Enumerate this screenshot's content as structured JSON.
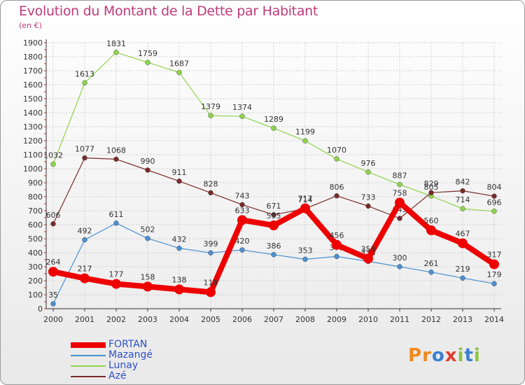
{
  "title": "Evolution du Montant de la Dette par Habitant",
  "subtitle": "(en €)",
  "logo": {
    "letters": [
      "P",
      "r",
      "o",
      "x",
      "i",
      "t",
      "i"
    ],
    "colors": [
      "#f08a1c",
      "#f08a1c",
      "#3a7fd0",
      "#e23b2f",
      "#8cc63f",
      "#3a7fd0",
      "#8cc63f"
    ]
  },
  "chart_data": {
    "type": "line",
    "x": [
      "2000",
      "2001",
      "2002",
      "2003",
      "2004",
      "2005",
      "2006",
      "2007",
      "2008",
      "2009",
      "2010",
      "2011",
      "2012",
      "2013",
      "2014"
    ],
    "ylim": [
      0,
      1900
    ],
    "yticks": [
      0,
      100,
      200,
      300,
      400,
      500,
      600,
      700,
      800,
      900,
      1000,
      1100,
      1200,
      1300,
      1400,
      1500,
      1600,
      1700,
      1800,
      1900
    ],
    "grid": true,
    "legend_position": "bottom-left",
    "series": [
      {
        "name": "Lunay",
        "color": "#8ed44a",
        "width": 1.2,
        "values": [
          1032,
          1613,
          1831,
          1759,
          1687,
          1379,
          1374,
          1289,
          1199,
          1070,
          976,
          887,
          805,
          714,
          696
        ],
        "labels": [
          "1032",
          "1613",
          "1831",
          "1759",
          "1687",
          "1379",
          "1374",
          "1289",
          "1199",
          "1070",
          "976",
          "887",
          "805",
          "714",
          "696"
        ]
      },
      {
        "name": "Azé",
        "color": "#7a2a2a",
        "width": 1.2,
        "values": [
          606,
          1077,
          1068,
          990,
          911,
          828,
          743,
          671,
          714,
          806,
          733,
          645,
          829,
          842,
          804
        ],
        "labels": [
          "606",
          "1077",
          "1068",
          "990",
          "911",
          "828",
          "743",
          "671",
          "714",
          "806",
          "733",
          "645",
          "829",
          "842",
          "804"
        ]
      },
      {
        "name": "Mazangé",
        "color": "#4a90d0",
        "width": 1.2,
        "values": [
          35,
          492,
          611,
          502,
          432,
          399,
          420,
          386,
          353,
          373,
          338,
          300,
          261,
          219,
          179
        ],
        "labels": [
          "35",
          "492",
          "611",
          "502",
          "432",
          "399",
          "420",
          "386",
          "353",
          "373",
          "338",
          "300",
          "261",
          "219",
          "179"
        ]
      },
      {
        "name": "FORTAN",
        "color": "#ee0000",
        "width": 8,
        "values": [
          264,
          217,
          177,
          158,
          138,
          118,
          633,
          595,
          717,
          456,
          358,
          758,
          560,
          467,
          317
        ],
        "labels": [
          "264",
          "217",
          "177",
          "158",
          "138",
          "118",
          "633",
          "595",
          "717",
          "456",
          "358",
          "758",
          "560",
          "467",
          "317"
        ]
      }
    ],
    "legend_order": [
      "FORTAN",
      "Mazangé",
      "Lunay",
      "Azé"
    ]
  }
}
